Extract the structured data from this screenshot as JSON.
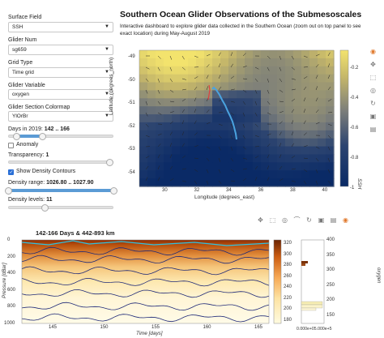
{
  "sidebar": {
    "surface_field": {
      "label": "Surface Field",
      "value": "SSH"
    },
    "glider_num": {
      "label": "Glider Num",
      "value": "sg659"
    },
    "grid_type": {
      "label": "Grid Type",
      "value": "Time grid"
    },
    "glider_variable": {
      "label": "Glider Variable",
      "value": "oxygen"
    },
    "section_colormap": {
      "label": "Glider Section Colormap",
      "value": "YlOrBr"
    },
    "days": {
      "label": "Days in 2019: ",
      "value": "142 .. 166",
      "range": [
        0.08,
        0.33
      ]
    },
    "anomaly": {
      "label": "Anomaly",
      "checked": false
    },
    "transparency": {
      "label": "Transparency: ",
      "value": "1",
      "level": 1.0
    },
    "show_contours": {
      "label": "Show Density Contours",
      "checked": true
    },
    "density_range": {
      "label": "Density range: ",
      "value": "1026.80 .. 1027.90",
      "range": [
        0.0,
        1.0
      ]
    },
    "density_levels": {
      "label": "Density levels: ",
      "value": "11",
      "level": 0.35
    }
  },
  "header": {
    "title": "Southern Ocean Glider Observations of the Submesoscales",
    "description": "Interactive dashboard to explore glider data collected in the Southern Ocean (zoom out on top panel to see exact location) during May-August 2019"
  },
  "map": {
    "xlabel": "Longitude (degrees_east)",
    "ylabel": "Latitude (degrees_north)",
    "xticks": [
      "30",
      "32",
      "34",
      "36",
      "38",
      "40"
    ],
    "yticks": [
      "-49",
      "-50",
      "-51",
      "-52",
      "-53",
      "-54"
    ],
    "colorbar_label": "SSH",
    "colorbar_ticks": [
      "-0.2",
      "-0.4",
      "-0.6",
      "-0.8",
      "-1"
    ]
  },
  "section": {
    "title": "142-166 Days & 442-893 km",
    "xlabel": "Time [days]",
    "ylabel": "Pressure [dBar]",
    "xticks": [
      "145",
      "150",
      "155",
      "160",
      "165"
    ],
    "yticks": [
      "0",
      "200",
      "400",
      "600",
      "800",
      "1000"
    ],
    "colorbar_ticks": [
      "320",
      "300",
      "280",
      "260",
      "240",
      "220",
      "200",
      "180"
    ],
    "hist_ticks": [
      "400",
      "350",
      "300",
      "250",
      "200",
      "150"
    ],
    "hist_ylabel": "oxygen",
    "hist_xlabel": "0.000e+05.000e+5"
  },
  "toolbar_top": [
    "color-wheel-icon",
    "pan-icon",
    "box-zoom-icon",
    "wheel-zoom-icon",
    "reset-icon",
    "save-icon",
    "hover-icon"
  ],
  "toolbar_bottom": [
    "pan-icon",
    "box-zoom-icon",
    "wheel-zoom-icon",
    "lasso-icon",
    "reset-icon",
    "save-icon",
    "hover-icon",
    "color-wheel-icon"
  ]
}
